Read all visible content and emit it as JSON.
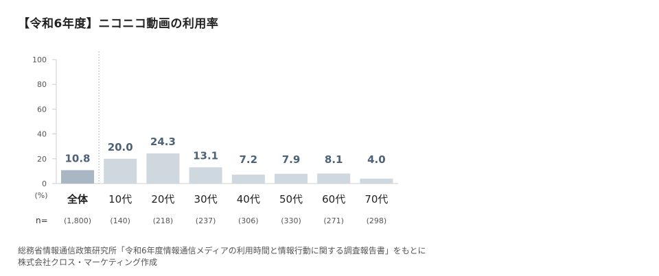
{
  "title": "【令和6年度】ニコニコ動画の利用率",
  "colors": {
    "total_bar": "#a9b7c4",
    "age_bar": "#cfd7df",
    "value_label": "#4d6278",
    "axis": "#cccccc",
    "divider": "#b8b8b8"
  },
  "chart_data": {
    "type": "bar",
    "categories": [
      "全体",
      "10代",
      "20代",
      "30代",
      "40代",
      "50代",
      "60代",
      "70代"
    ],
    "values": [
      10.8,
      20.0,
      24.3,
      13.1,
      7.2,
      7.9,
      8.1,
      4.0
    ],
    "value_labels": [
      "10.8",
      "20.0",
      "24.3",
      "13.1",
      "7.2",
      "7.9",
      "8.1",
      "4.0"
    ],
    "yticks": [
      "100",
      "80",
      "60",
      "40",
      "20",
      "0"
    ],
    "ylim": [
      0,
      100
    ],
    "y_unit": "(%)",
    "n_label": "n=",
    "n_values": [
      "(1,800)",
      "(140)",
      "(218)",
      "(237)",
      "(306)",
      "(330)",
      "(271)",
      "(298)"
    ]
  },
  "source": {
    "line1": "総務省情報通信政策研究所「令和6年度情報通信メディアの利用時間と情報行動に関する調査報告書」をもとに",
    "line2": "株式会社クロス・マーケティング作成"
  }
}
